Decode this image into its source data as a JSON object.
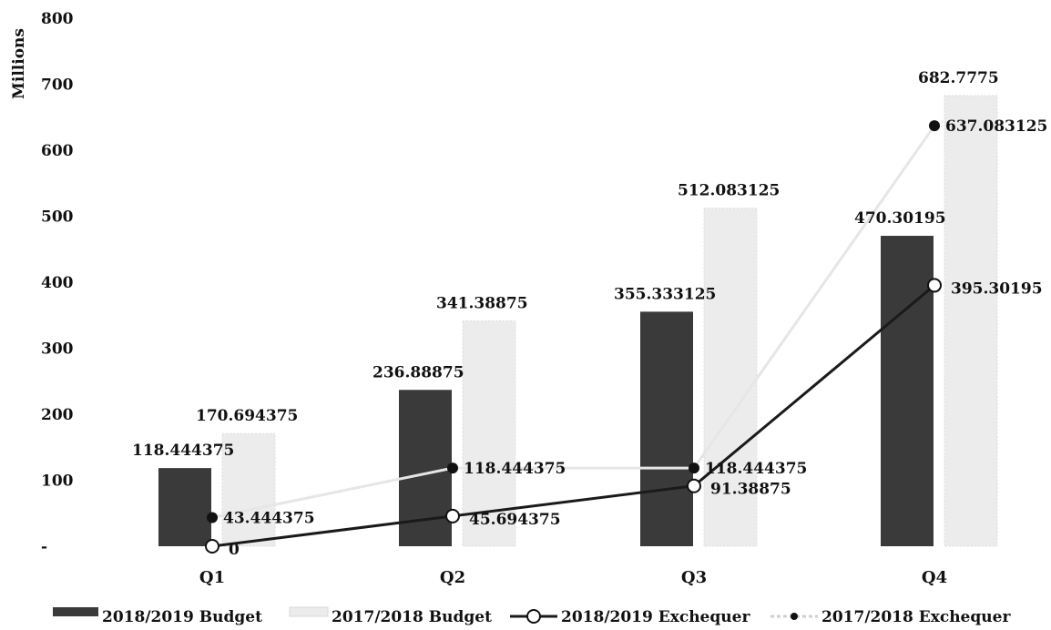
{
  "chart_data": {
    "type": "bar",
    "ylabel": "Millions",
    "ylim": [
      0,
      800
    ],
    "yticks": [
      "-",
      "100",
      "200",
      "300",
      "400",
      "500",
      "600",
      "700",
      "800"
    ],
    "categories": [
      "Q1",
      "Q2",
      "Q3",
      "Q4"
    ],
    "series": [
      {
        "name": "2018/2019 Budget",
        "kind": "bar",
        "color": "#3a3a3a",
        "values": [
          118.444375,
          236.88875,
          355.333125,
          470.30195
        ],
        "labels": [
          "118.444375",
          "236.88875",
          "355.333125",
          "470.30195"
        ]
      },
      {
        "name": "2017/2018 Budget",
        "kind": "bar",
        "color": "#ececec",
        "values": [
          170.694375,
          341.38875,
          512.083125,
          682.7775
        ],
        "labels": [
          "170.694375",
          "341.38875",
          "512.083125",
          "682.7775"
        ]
      },
      {
        "name": "2018/2019 Exchequer",
        "kind": "line",
        "marker": "open-circle",
        "color": "#1a1a1a",
        "values": [
          0,
          45.694375,
          91.38875,
          395.30195
        ],
        "labels": [
          "0",
          "45.694375",
          "91.38875",
          "395.30195"
        ]
      },
      {
        "name": "2017/2018 Exchequer",
        "kind": "line",
        "marker": "filled-circle",
        "color": "#dddddd",
        "values": [
          43.444375,
          118.444375,
          118.444375,
          637.083125
        ],
        "labels": [
          "43.444375",
          "118.444375",
          "118.444375",
          "637.083125"
        ]
      }
    ],
    "legend_position": "bottom",
    "grid": false
  }
}
